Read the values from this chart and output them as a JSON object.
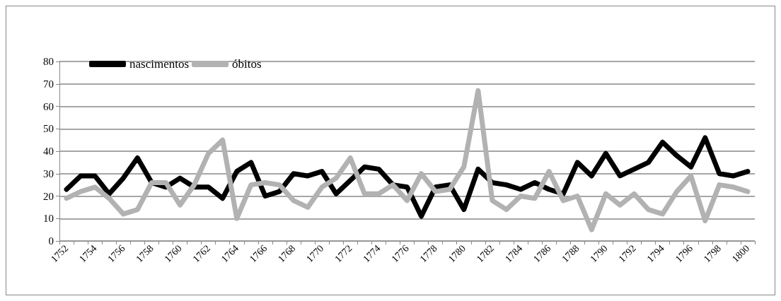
{
  "chart_data": {
    "type": "line",
    "categories": [
      "1752",
      null,
      "1754",
      null,
      "1756",
      null,
      "1758",
      null,
      "1760",
      null,
      "1762",
      null,
      "1764",
      null,
      "1766",
      null,
      "1768",
      null,
      "1770",
      null,
      "1772",
      null,
      "1774",
      null,
      "1776",
      null,
      "1778",
      null,
      "1780",
      null,
      "1782",
      null,
      "1784",
      null,
      "1786",
      null,
      "1788",
      null,
      "1790",
      null,
      "1792",
      null,
      "1794",
      null,
      "1796",
      null,
      "1798",
      null,
      "1800"
    ],
    "series": [
      {
        "name": "nascimentos",
        "color": "#000000",
        "values": [
          23,
          29,
          29,
          21,
          28,
          37,
          26,
          24,
          28,
          24,
          24,
          19,
          31,
          35,
          20,
          22,
          30,
          29,
          31,
          21,
          27,
          33,
          32,
          25,
          24,
          11,
          24,
          25,
          14,
          32,
          26,
          25,
          23,
          26,
          23,
          21,
          35,
          29,
          39,
          29,
          32,
          35,
          44,
          38,
          33,
          46,
          30,
          29,
          31
        ]
      },
      {
        "name": "óbitos",
        "color": "#b2b2b2",
        "values": [
          19,
          22,
          24,
          19,
          12,
          14,
          26,
          26,
          16,
          25,
          39,
          45,
          10,
          25,
          26,
          25,
          18,
          15,
          24,
          28,
          37,
          21,
          21,
          25,
          18,
          30,
          22,
          23,
          33,
          67,
          18,
          14,
          20,
          19,
          31,
          18,
          20,
          5,
          21,
          16,
          21,
          14,
          12,
          22,
          29,
          9,
          25,
          24,
          22
        ]
      }
    ],
    "ylim": [
      0,
      80
    ],
    "yticks": [
      0,
      10,
      20,
      30,
      40,
      50,
      60,
      70,
      80
    ],
    "grid": "y",
    "legend": "top left",
    "marker": "none",
    "line_style": "solid"
  }
}
